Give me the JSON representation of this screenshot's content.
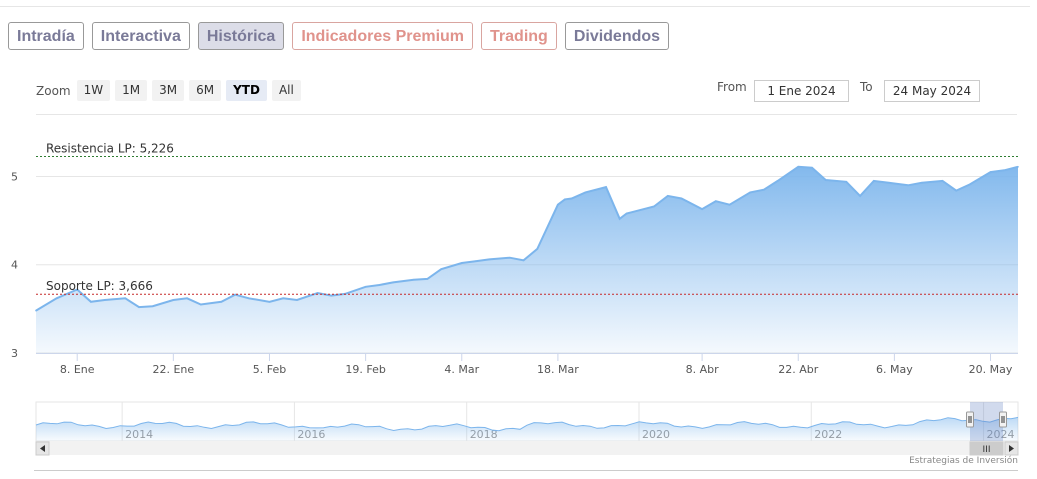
{
  "tabs": [
    {
      "label": "Intradía",
      "active": false,
      "premium": false
    },
    {
      "label": "Interactiva",
      "active": false,
      "premium": false
    },
    {
      "label": "Histórica",
      "active": true,
      "premium": false
    },
    {
      "label": "Indicadores Premium",
      "active": false,
      "premium": true
    },
    {
      "label": "Trading",
      "active": false,
      "premium": true
    },
    {
      "label": "Dividendos",
      "active": false,
      "premium": false
    }
  ],
  "zoom": {
    "label": "Zoom",
    "buttons": [
      "1W",
      "1M",
      "3M",
      "6M",
      "YTD",
      "All"
    ],
    "selected": "YTD"
  },
  "range": {
    "from_label": "From",
    "from_value": "1 Ene 2024",
    "to_label": "To",
    "to_value": "24 May 2024"
  },
  "credit": "Estrategias de Inversión",
  "colors": {
    "series": "#7cb5ec",
    "resistance": "#2e7d32",
    "support": "#c62828",
    "tab_text": "#7a7a98",
    "premium_text": "#e0938c"
  },
  "chart_data": {
    "type": "area",
    "x_start": "2024-01-02",
    "x_end": "2024-05-24",
    "xticks": [
      "8. Ene",
      "22. Ene",
      "5. Feb",
      "19. Feb",
      "4. Mar",
      "18. Mar",
      "8. Abr",
      "22. Abr",
      "6. May",
      "20. May"
    ],
    "yticks": [
      "3",
      "4",
      "5"
    ],
    "ylim": [
      3,
      5.3
    ],
    "x": [
      "2024-01-02",
      "2024-01-05",
      "2024-01-08",
      "2024-01-10",
      "2024-01-12",
      "2024-01-15",
      "2024-01-17",
      "2024-01-19",
      "2024-01-22",
      "2024-01-24",
      "2024-01-26",
      "2024-01-29",
      "2024-01-31",
      "2024-02-02",
      "2024-02-05",
      "2024-02-07",
      "2024-02-09",
      "2024-02-12",
      "2024-02-14",
      "2024-02-16",
      "2024-02-19",
      "2024-02-21",
      "2024-02-23",
      "2024-02-26",
      "2024-02-28",
      "2024-03-01",
      "2024-03-04",
      "2024-03-06",
      "2024-03-08",
      "2024-03-11",
      "2024-03-13",
      "2024-03-15",
      "2024-03-18",
      "2024-03-19",
      "2024-03-20",
      "2024-03-22",
      "2024-03-25",
      "2024-03-27",
      "2024-03-28",
      "2024-04-01",
      "2024-04-03",
      "2024-04-05",
      "2024-04-08",
      "2024-04-10",
      "2024-04-12",
      "2024-04-15",
      "2024-04-17",
      "2024-04-19",
      "2024-04-22",
      "2024-04-24",
      "2024-04-26",
      "2024-04-29",
      "2024-05-01",
      "2024-05-03",
      "2024-05-06",
      "2024-05-08",
      "2024-05-10",
      "2024-05-13",
      "2024-05-15",
      "2024-05-17",
      "2024-05-20",
      "2024-05-22",
      "2024-05-24"
    ],
    "y": [
      3.48,
      3.62,
      3.72,
      3.58,
      3.6,
      3.62,
      3.52,
      3.53,
      3.6,
      3.62,
      3.55,
      3.58,
      3.66,
      3.62,
      3.58,
      3.62,
      3.6,
      3.68,
      3.65,
      3.67,
      3.75,
      3.77,
      3.8,
      3.83,
      3.84,
      3.95,
      4.02,
      4.04,
      4.06,
      4.08,
      4.05,
      4.18,
      4.68,
      4.74,
      4.75,
      4.82,
      4.88,
      4.52,
      4.58,
      4.66,
      4.78,
      4.75,
      4.63,
      4.72,
      4.68,
      4.82,
      4.85,
      4.95,
      5.11,
      5.1,
      4.96,
      4.94,
      4.78,
      4.95,
      4.92,
      4.9,
      4.93,
      4.95,
      4.84,
      4.91,
      5.05,
      5.07,
      5.11
    ],
    "lines": [
      {
        "label": "Resistencia LP: 5,226",
        "value": 5.226,
        "color": "#2e7d32"
      },
      {
        "label": "Soporte LP: 3,666",
        "value": 3.666,
        "color": "#c62828"
      }
    ],
    "navigator": {
      "years": [
        "2014",
        "2016",
        "2018",
        "2020",
        "2022",
        "2024"
      ],
      "scrollbar_grip": "III"
    }
  }
}
